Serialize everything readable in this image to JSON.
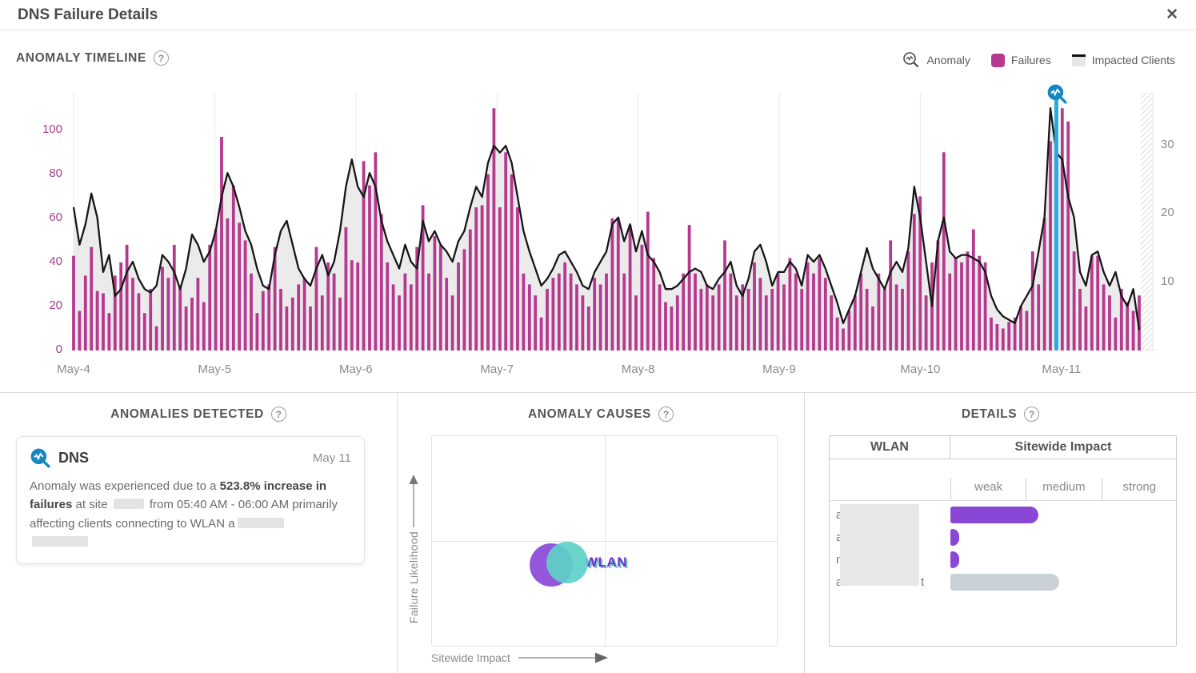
{
  "window": {
    "title": "DNS Failure Details"
  },
  "ui": {
    "close_glyph": "✕",
    "help_glyph": "?"
  },
  "timeline": {
    "heading": "ANOMALY TIMELINE",
    "legend": [
      {
        "label": "Anomaly",
        "icon": "anomaly-magnifier-icon"
      },
      {
        "label": "Failures",
        "swatch": "#b53a8f"
      },
      {
        "label": "Impacted Clients",
        "swatch": "#e6e6e6",
        "line": "#111111"
      }
    ]
  },
  "panels": {
    "anomalies_heading": "ANOMALIES DETECTED",
    "causes_heading": "ANOMALY CAUSES",
    "details_heading": "DETAILS"
  },
  "anomaly_card": {
    "service": "DNS",
    "date": "May 11",
    "text_parts": [
      {
        "t": "Anomaly was experienced due to a "
      },
      {
        "t": "523.8% increase in failures",
        "bold": true
      },
      {
        "t": " at site "
      },
      {
        "redact": 38
      },
      {
        "t": " from 05:40 AM - 06:00 AM primarily affecting  clients connecting to WLAN a"
      },
      {
        "redact": 58
      },
      {
        "br": true
      },
      {
        "redact": 70
      }
    ]
  },
  "chart_data": [
    {
      "type": "bar",
      "title": "Anomaly Timeline",
      "x_labels": [
        "May-4",
        "May-5",
        "May-6",
        "May-7",
        "May-8",
        "May-9",
        "May-10",
        "May-11"
      ],
      "y_left": {
        "label": "Failures",
        "ticks": [
          0,
          20,
          40,
          60,
          80,
          100
        ],
        "max": 117,
        "color": "#a8408f"
      },
      "y_right": {
        "label": "Impacted Clients",
        "ticks": [
          10,
          20,
          30
        ],
        "max": 37.75,
        "color": "#8c8c8c"
      },
      "anomaly_index": 166,
      "anomaly_color": "#29a9e1",
      "series": [
        {
          "name": "Failures",
          "type": "bar",
          "color": "#b53a8f",
          "values": [
            43,
            18,
            34,
            47,
            27,
            26,
            17,
            34,
            40,
            48,
            33,
            26,
            17,
            28,
            11,
            38,
            33,
            48,
            29,
            20,
            24,
            33,
            22,
            48,
            55,
            97,
            60,
            75,
            58,
            50,
            35,
            17,
            27,
            30,
            47,
            28,
            20,
            24,
            30,
            33,
            20,
            47,
            25,
            40,
            35,
            24,
            56,
            41,
            40,
            86,
            75,
            90,
            62,
            40,
            30,
            25,
            35,
            30,
            47,
            66,
            35,
            52,
            48,
            33,
            25,
            40,
            46,
            55,
            65,
            66,
            80,
            110,
            65,
            90,
            80,
            65,
            35,
            30,
            25,
            15,
            28,
            33,
            35,
            40,
            35,
            30,
            25,
            20,
            33,
            30,
            35,
            60,
            60,
            35,
            57,
            25,
            48,
            63,
            42,
            30,
            22,
            20,
            25,
            35,
            57,
            35,
            28,
            30,
            25,
            30,
            50,
            35,
            25,
            30,
            28,
            40,
            33,
            25,
            28,
            35,
            30,
            42,
            35,
            28,
            40,
            35,
            42,
            33,
            25,
            15,
            10,
            18,
            25,
            35,
            28,
            20,
            35,
            28,
            50,
            30,
            28,
            45,
            62,
            70,
            25,
            40,
            50,
            90,
            35,
            42,
            40,
            45,
            55,
            43,
            40,
            15,
            12,
            10,
            13,
            15,
            20,
            18,
            45,
            30,
            60,
            95,
            55,
            110,
            104,
            45,
            28,
            20,
            43,
            43,
            30,
            25,
            15,
            28,
            22,
            18,
            25
          ]
        },
        {
          "name": "Impacted Clients",
          "type": "area-line",
          "fill": "#ebebeb",
          "line_color": "#161616",
          "values": [
            21,
            15.5,
            18.5,
            23,
            19.5,
            11.5,
            14,
            8,
            9,
            11.5,
            13,
            10.5,
            9,
            8.5,
            9.5,
            14,
            13,
            11.5,
            9,
            12,
            17,
            15.5,
            13,
            14.5,
            17.5,
            22.5,
            26,
            24,
            21,
            17.5,
            15.5,
            12,
            9.5,
            9,
            14,
            17.5,
            19,
            15.5,
            12,
            10.5,
            9.5,
            12,
            14,
            11,
            13,
            17.5,
            24,
            28,
            24,
            22.5,
            26,
            24,
            19,
            16,
            14,
            12,
            15.5,
            13,
            12,
            19,
            16,
            17.5,
            15.5,
            14.5,
            13,
            16,
            17.5,
            21,
            24,
            22.5,
            27.5,
            30,
            29,
            30,
            27.5,
            22.5,
            17.5,
            14.5,
            12,
            9.5,
            10.5,
            12,
            14,
            14.5,
            13,
            11.5,
            9.5,
            9,
            11.5,
            13,
            14.5,
            18.5,
            19.5,
            16,
            18.5,
            14.5,
            17.5,
            14,
            13,
            11.5,
            9,
            9,
            9.5,
            10.5,
            11.5,
            12,
            11.5,
            9.5,
            9,
            10.5,
            11.5,
            13,
            9.5,
            8,
            10.5,
            14.5,
            15.5,
            13,
            9.5,
            11.5,
            11.5,
            13,
            12,
            9.5,
            14,
            13,
            14,
            12,
            9.5,
            7,
            4,
            6,
            8,
            11.5,
            15,
            12,
            10.5,
            9,
            11.5,
            13,
            11.5,
            15,
            24,
            19.5,
            13,
            6.5,
            16,
            19.5,
            14.5,
            13.5,
            14,
            14,
            13.5,
            13,
            11.5,
            8,
            6,
            5,
            4.5,
            4,
            6.5,
            8,
            9.5,
            14.5,
            19.5,
            35.5,
            29,
            28,
            22.5,
            19.5,
            11.5,
            9.5,
            14,
            14.5,
            11.5,
            9.5,
            11.5,
            8,
            6.5,
            9,
            3
          ]
        }
      ]
    },
    {
      "type": "scatter",
      "title": "Anomaly Causes",
      "xlabel": "Sitewide Impact",
      "ylabel": "Failure Likelihood",
      "quadrants": true,
      "bubbles": [
        {
          "name": "WLAN",
          "color": "#8b49d8",
          "x": 0.345,
          "y": 0.611,
          "r": 27
        },
        {
          "name": "WLAN",
          "color": "#5ed0c8",
          "x": 0.391,
          "y": 0.6,
          "r": 26
        }
      ],
      "label": {
        "text": "WLAN",
        "color": "#7230c9",
        "shadow_color": "#5ed0c8"
      }
    },
    {
      "type": "table",
      "title": "Details",
      "columns": [
        "WLAN",
        "Sitewide Impact"
      ],
      "impact_levels": [
        "weak",
        "medium",
        "strong"
      ],
      "rows": [
        {
          "wlan_visible": "a",
          "wlan_suffix": "",
          "impact_fraction": 0.39,
          "color": "#8a47d6"
        },
        {
          "wlan_visible": "a",
          "wlan_suffix": "",
          "impact_fraction": 0.04,
          "color": "#8a47d6"
        },
        {
          "wlan_visible": "n",
          "wlan_suffix": "",
          "impact_fraction": 0.04,
          "color": "#8a47d6"
        },
        {
          "wlan_visible": "a",
          "wlan_suffix": "t",
          "impact_fraction": 0.48,
          "color": "#c9d0d6"
        }
      ]
    }
  ]
}
